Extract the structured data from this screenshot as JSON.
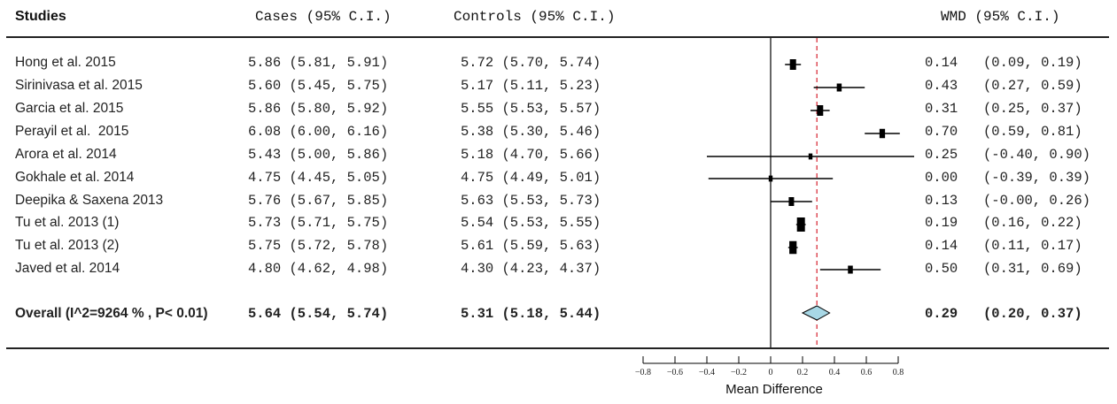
{
  "headers": {
    "studies": "Studies",
    "cases": "Cases (95% C.I.)",
    "controls": "Controls (95% C.I.)",
    "wmd": "WMD (95% C.I.)"
  },
  "rows": [
    {
      "study": "Hong et al. 2015",
      "cases": "5.86 (5.81, 5.91)",
      "controls": "5.72 (5.70, 5.74)",
      "wmd": "0.14",
      "wmd_ci": "(0.09, 0.19)"
    },
    {
      "study": "Sirinivasa et al. 2015",
      "cases": "5.60 (5.45, 5.75)",
      "controls": "5.17 (5.11, 5.23)",
      "wmd": "0.43",
      "wmd_ci": "(0.27, 0.59)"
    },
    {
      "study": "Garcia et al. 2015",
      "cases": "5.86 (5.80, 5.92)",
      "controls": "5.55 (5.53, 5.57)",
      "wmd": "0.31",
      "wmd_ci": "(0.25, 0.37)"
    },
    {
      "study": "Perayil et al.  2015",
      "cases": "6.08 (6.00, 6.16)",
      "controls": "5.38 (5.30, 5.46)",
      "wmd": "0.70",
      "wmd_ci": "(0.59, 0.81)"
    },
    {
      "study": "Arora et al. 2014",
      "cases": "5.43 (5.00, 5.86)",
      "controls": "5.18 (4.70, 5.66)",
      "wmd": "0.25",
      "wmd_ci": "(-0.40, 0.90)"
    },
    {
      "study": "Gokhale et al. 2014",
      "cases": "4.75 (4.45, 5.05)",
      "controls": "4.75 (4.49, 5.01)",
      "wmd": "0.00",
      "wmd_ci": "(-0.39, 0.39)"
    },
    {
      "study": "Deepika & Saxena 2013",
      "cases": "5.76 (5.67, 5.85)",
      "controls": "5.63 (5.53, 5.73)",
      "wmd": "0.13",
      "wmd_ci": "(-0.00, 0.26)"
    },
    {
      "study": "Tu et al. 2013 (1)",
      "cases": "5.73 (5.71, 5.75)",
      "controls": "5.54 (5.53, 5.55)",
      "wmd": "0.19",
      "wmd_ci": "(0.16, 0.22)"
    },
    {
      "study": "Tu et al. 2013 (2)",
      "cases": "5.75 (5.72, 5.78)",
      "controls": "5.61 (5.59, 5.63)",
      "wmd": "0.14",
      "wmd_ci": "(0.11, 0.17)"
    },
    {
      "study": "Javed et al. 2014",
      "cases": "4.80 (4.62, 4.98)",
      "controls": "4.30 (4.23, 4.37)",
      "wmd": "0.50",
      "wmd_ci": "(0.31, 0.69)"
    }
  ],
  "overall": {
    "study": "Overall (I^2=9264 % , P< 0.01)",
    "cases": "5.64 (5.54, 5.74)",
    "controls": "5.31 (5.18, 5.44)",
    "wmd": "0.29",
    "wmd_ci": "(0.20, 0.37)"
  },
  "chart_data": {
    "type": "forest",
    "xlabel": "Mean Difference",
    "xlim": [
      -0.8,
      0.8
    ],
    "xticks": [
      -0.8,
      -0.6,
      -0.4,
      -0.2,
      0,
      0.2,
      0.4,
      0.6,
      0.8
    ],
    "null_line": 0,
    "summary_line": 0.29,
    "studies": [
      {
        "name": "Hong et al. 2015",
        "est": 0.14,
        "lo": 0.09,
        "hi": 0.19,
        "weight": 0.6
      },
      {
        "name": "Sirinivasa et al. 2015",
        "est": 0.43,
        "lo": 0.27,
        "hi": 0.59,
        "weight": 0.3
      },
      {
        "name": "Garcia et al. 2015",
        "est": 0.31,
        "lo": 0.25,
        "hi": 0.37,
        "weight": 0.6
      },
      {
        "name": "Perayil et al.  2015",
        "est": 0.7,
        "lo": 0.59,
        "hi": 0.81,
        "weight": 0.45
      },
      {
        "name": "Arora et al. 2014",
        "est": 0.25,
        "lo": -0.4,
        "hi": 0.9,
        "weight": 0.08
      },
      {
        "name": "Gokhale et al. 2014",
        "est": 0.0,
        "lo": -0.39,
        "hi": 0.39,
        "weight": 0.08
      },
      {
        "name": "Deepika & Saxena 2013",
        "est": 0.13,
        "lo": -0.0,
        "hi": 0.26,
        "weight": 0.4
      },
      {
        "name": "Tu et al. 2013 (1)",
        "est": 0.19,
        "lo": 0.16,
        "hi": 0.22,
        "weight": 1.0
      },
      {
        "name": "Tu et al. 2013 (2)",
        "est": 0.14,
        "lo": 0.11,
        "hi": 0.17,
        "weight": 0.85
      },
      {
        "name": "Javed et al. 2014",
        "est": 0.5,
        "lo": 0.31,
        "hi": 0.69,
        "weight": 0.3
      }
    ],
    "overall": {
      "est": 0.29,
      "lo": 0.2,
      "hi": 0.37
    },
    "colors": {
      "summary_line": "#d9313e",
      "diamond_fill": "#a8d8e6",
      "ink": "#000000"
    }
  }
}
